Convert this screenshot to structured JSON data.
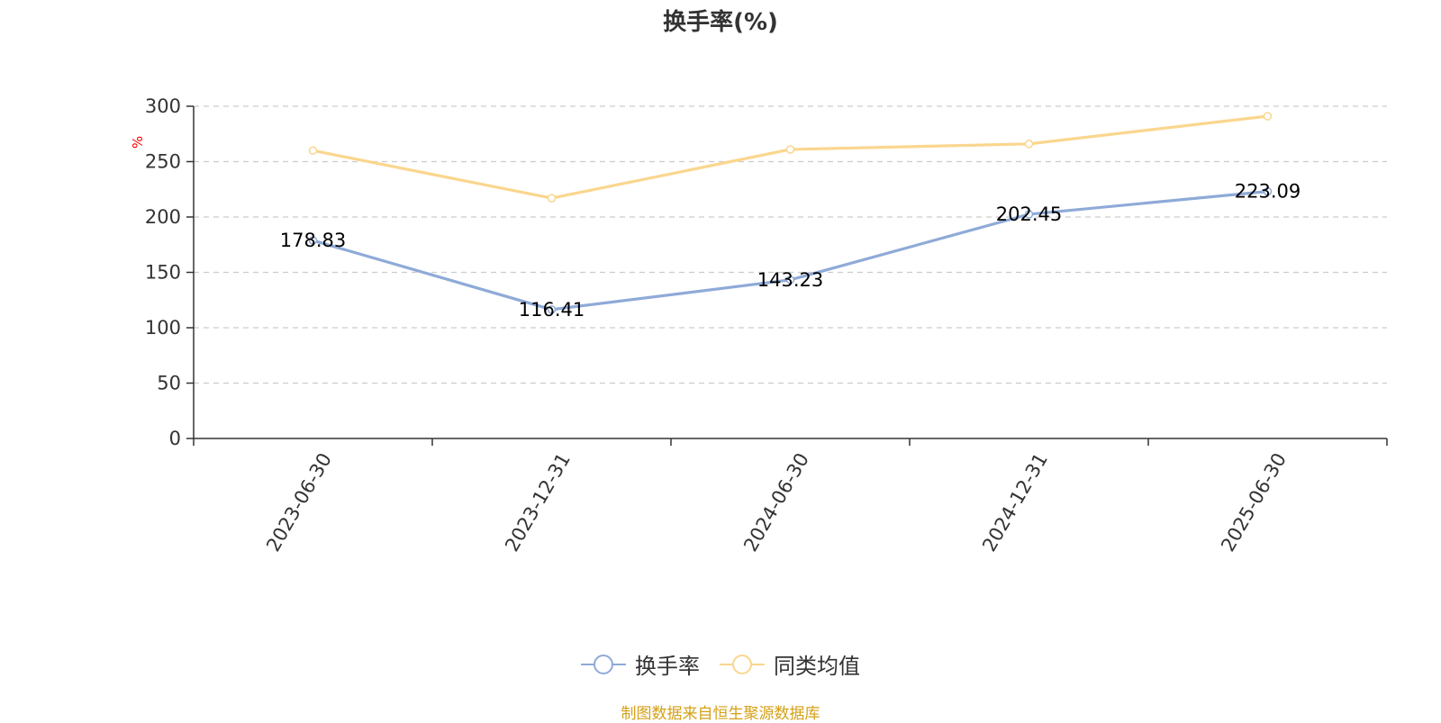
{
  "chart_data": {
    "type": "line",
    "title": "换手率(%)",
    "ylabel": "%",
    "xlabel": "",
    "categories": [
      "2023-06-30",
      "2023-12-31",
      "2024-06-30",
      "2024-12-31",
      "2025-06-30"
    ],
    "series": [
      {
        "name": "换手率",
        "color": "#8eaad8",
        "values": [
          178.83,
          116.41,
          143.23,
          202.45,
          223.09
        ],
        "show_labels": true
      },
      {
        "name": "同类均值",
        "color": "#fad68e",
        "values": [
          260,
          217,
          261,
          266,
          291
        ],
        "show_labels": false
      }
    ],
    "ylim": [
      0,
      300
    ],
    "yticks": [
      0,
      50,
      100,
      150,
      200,
      250,
      300
    ],
    "grid": true,
    "legend_position": "bottom-center"
  },
  "source_note": "制图数据来自恒生聚源数据库",
  "colors": {
    "title": "#333333",
    "axis": "#333333",
    "grid": "#cccccc",
    "ylabel": "#ff0000",
    "source_note": "#d4a017"
  },
  "icons": {
    "legend_marker": "circle-on-line-icon"
  }
}
